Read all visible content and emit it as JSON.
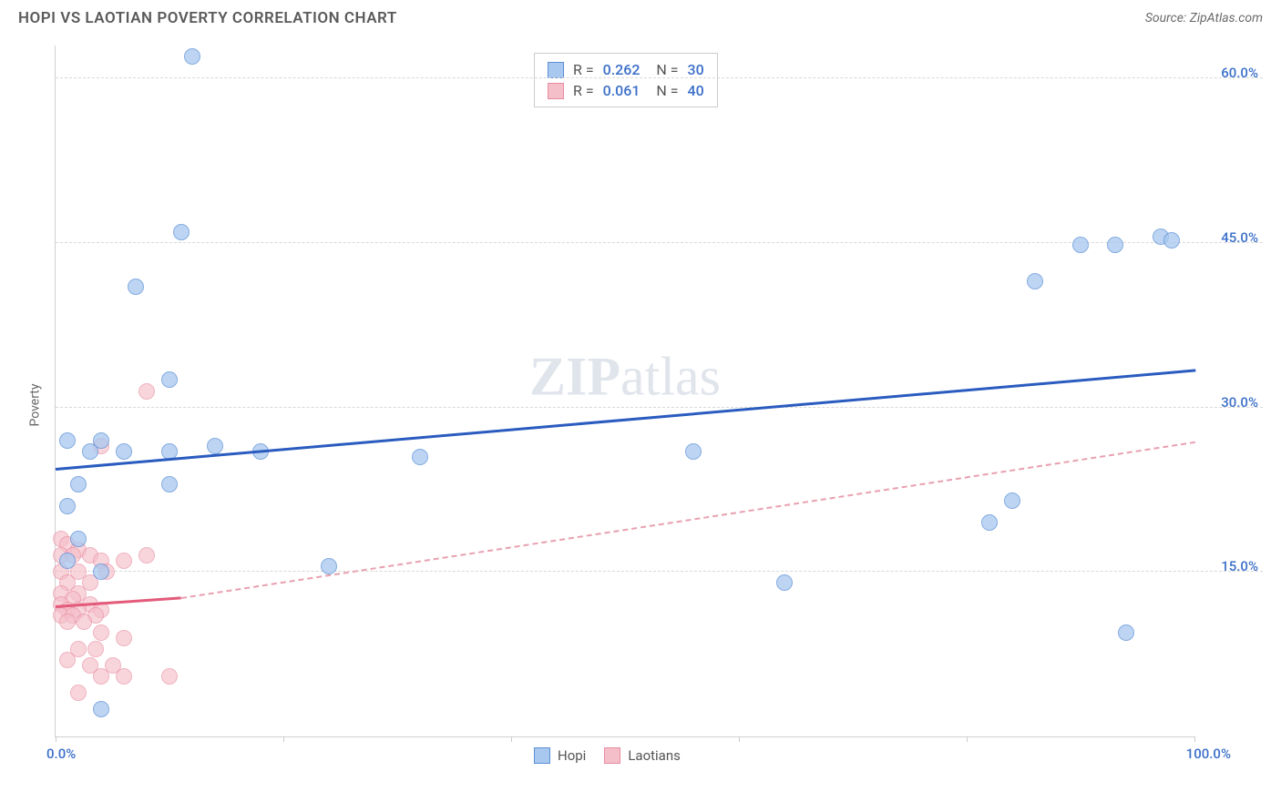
{
  "header": {
    "title": "HOPI VS LAOTIAN POVERTY CORRELATION CHART",
    "source": "Source: ZipAtlas.com"
  },
  "chart": {
    "type": "scatter",
    "ylabel": "Poverty",
    "xlim": [
      0,
      100
    ],
    "ylim": [
      0,
      63
    ],
    "x_min_label": "0.0%",
    "x_max_label": "100.0%",
    "xtick_positions": [
      0,
      20,
      40,
      60,
      80,
      100
    ],
    "y_gridlines": [
      {
        "value": 15,
        "label": "15.0%"
      },
      {
        "value": 30,
        "label": "30.0%"
      },
      {
        "value": 45,
        "label": "45.0%"
      },
      {
        "value": 60,
        "label": "60.0%"
      }
    ],
    "background_color": "#ffffff",
    "grid_color": "#d8d8d8",
    "axis_label_color": "#3b6fc9",
    "watermark": {
      "bold_part": "ZIP",
      "light_part": "atlas"
    },
    "series": [
      {
        "name": "Hopi",
        "marker_fill": "#a8c8f0",
        "marker_stroke": "#5b8fd6",
        "marker_size": 18,
        "marker_opacity": 0.75,
        "R": "0.262",
        "N": "30",
        "trendline": {
          "color_solid": "#2a5bbf",
          "color_dash": "#2a5bbf",
          "x_solid_start": 0,
          "y_solid_start": 24.5,
          "x_solid_end": 100,
          "y_solid_end": 33.5,
          "dash_active": false
        },
        "points": [
          {
            "x": 12,
            "y": 62
          },
          {
            "x": 11,
            "y": 46
          },
          {
            "x": 7,
            "y": 41
          },
          {
            "x": 10,
            "y": 32.5
          },
          {
            "x": 1,
            "y": 27
          },
          {
            "x": 4,
            "y": 27
          },
          {
            "x": 3,
            "y": 26
          },
          {
            "x": 6,
            "y": 26
          },
          {
            "x": 10,
            "y": 26
          },
          {
            "x": 14,
            "y": 26.5
          },
          {
            "x": 18,
            "y": 26
          },
          {
            "x": 32,
            "y": 25.5
          },
          {
            "x": 2,
            "y": 23
          },
          {
            "x": 10,
            "y": 23
          },
          {
            "x": 1,
            "y": 21
          },
          {
            "x": 2,
            "y": 18
          },
          {
            "x": 1,
            "y": 16
          },
          {
            "x": 24,
            "y": 15.5
          },
          {
            "x": 4,
            "y": 2.5
          },
          {
            "x": 56,
            "y": 26
          },
          {
            "x": 64,
            "y": 14
          },
          {
            "x": 84,
            "y": 21.5
          },
          {
            "x": 82,
            "y": 19.5
          },
          {
            "x": 86,
            "y": 41.5
          },
          {
            "x": 90,
            "y": 44.8
          },
          {
            "x": 93,
            "y": 44.8
          },
          {
            "x": 97,
            "y": 45.6
          },
          {
            "x": 98,
            "y": 45.2
          },
          {
            "x": 94,
            "y": 9.5
          },
          {
            "x": 4,
            "y": 15
          }
        ]
      },
      {
        "name": "Laotians",
        "marker_fill": "#f5bfc9",
        "marker_stroke": "#e88ca0",
        "marker_size": 18,
        "marker_opacity": 0.65,
        "R": "0.061",
        "N": "40",
        "trendline": {
          "color_solid": "#e35a7a",
          "color_dash": "#e8a0b0",
          "x_solid_start": 0,
          "y_solid_start": 12,
          "x_solid_end": 11,
          "y_solid_end": 12.8,
          "x_dash_start": 11,
          "y_dash_start": 12.8,
          "x_dash_end": 100,
          "y_dash_end": 27,
          "dash_active": true
        },
        "points": [
          {
            "x": 8,
            "y": 31.5
          },
          {
            "x": 4,
            "y": 26.5
          },
          {
            "x": 0.5,
            "y": 18
          },
          {
            "x": 1,
            "y": 17.5
          },
          {
            "x": 2,
            "y": 17
          },
          {
            "x": 0.5,
            "y": 16.5
          },
          {
            "x": 1.5,
            "y": 16.5
          },
          {
            "x": 3,
            "y": 16.5
          },
          {
            "x": 8,
            "y": 16.5
          },
          {
            "x": 4,
            "y": 16
          },
          {
            "x": 6,
            "y": 16
          },
          {
            "x": 0.5,
            "y": 15
          },
          {
            "x": 2,
            "y": 15
          },
          {
            "x": 4.5,
            "y": 15
          },
          {
            "x": 1,
            "y": 14
          },
          {
            "x": 3,
            "y": 14
          },
          {
            "x": 0.5,
            "y": 13
          },
          {
            "x": 2,
            "y": 13
          },
          {
            "x": 1.5,
            "y": 12.5
          },
          {
            "x": 0.5,
            "y": 12
          },
          {
            "x": 3,
            "y": 12
          },
          {
            "x": 1,
            "y": 11.5
          },
          {
            "x": 2,
            "y": 11.5
          },
          {
            "x": 4,
            "y": 11.5
          },
          {
            "x": 0.5,
            "y": 11
          },
          {
            "x": 1.5,
            "y": 11
          },
          {
            "x": 3.5,
            "y": 11
          },
          {
            "x": 1,
            "y": 10.5
          },
          {
            "x": 2.5,
            "y": 10.5
          },
          {
            "x": 4,
            "y": 9.5
          },
          {
            "x": 6,
            "y": 9
          },
          {
            "x": 2,
            "y": 8
          },
          {
            "x": 3.5,
            "y": 8
          },
          {
            "x": 1,
            "y": 7
          },
          {
            "x": 3,
            "y": 6.5
          },
          {
            "x": 5,
            "y": 6.5
          },
          {
            "x": 4,
            "y": 5.5
          },
          {
            "x": 6,
            "y": 5.5
          },
          {
            "x": 10,
            "y": 5.5
          },
          {
            "x": 2,
            "y": 4
          }
        ]
      }
    ],
    "bottom_legend": [
      {
        "label": "Hopi",
        "fill": "#a8c8f0",
        "stroke": "#5b8fd6"
      },
      {
        "label": "Laotians",
        "fill": "#f5bfc9",
        "stroke": "#e88ca0"
      }
    ]
  }
}
